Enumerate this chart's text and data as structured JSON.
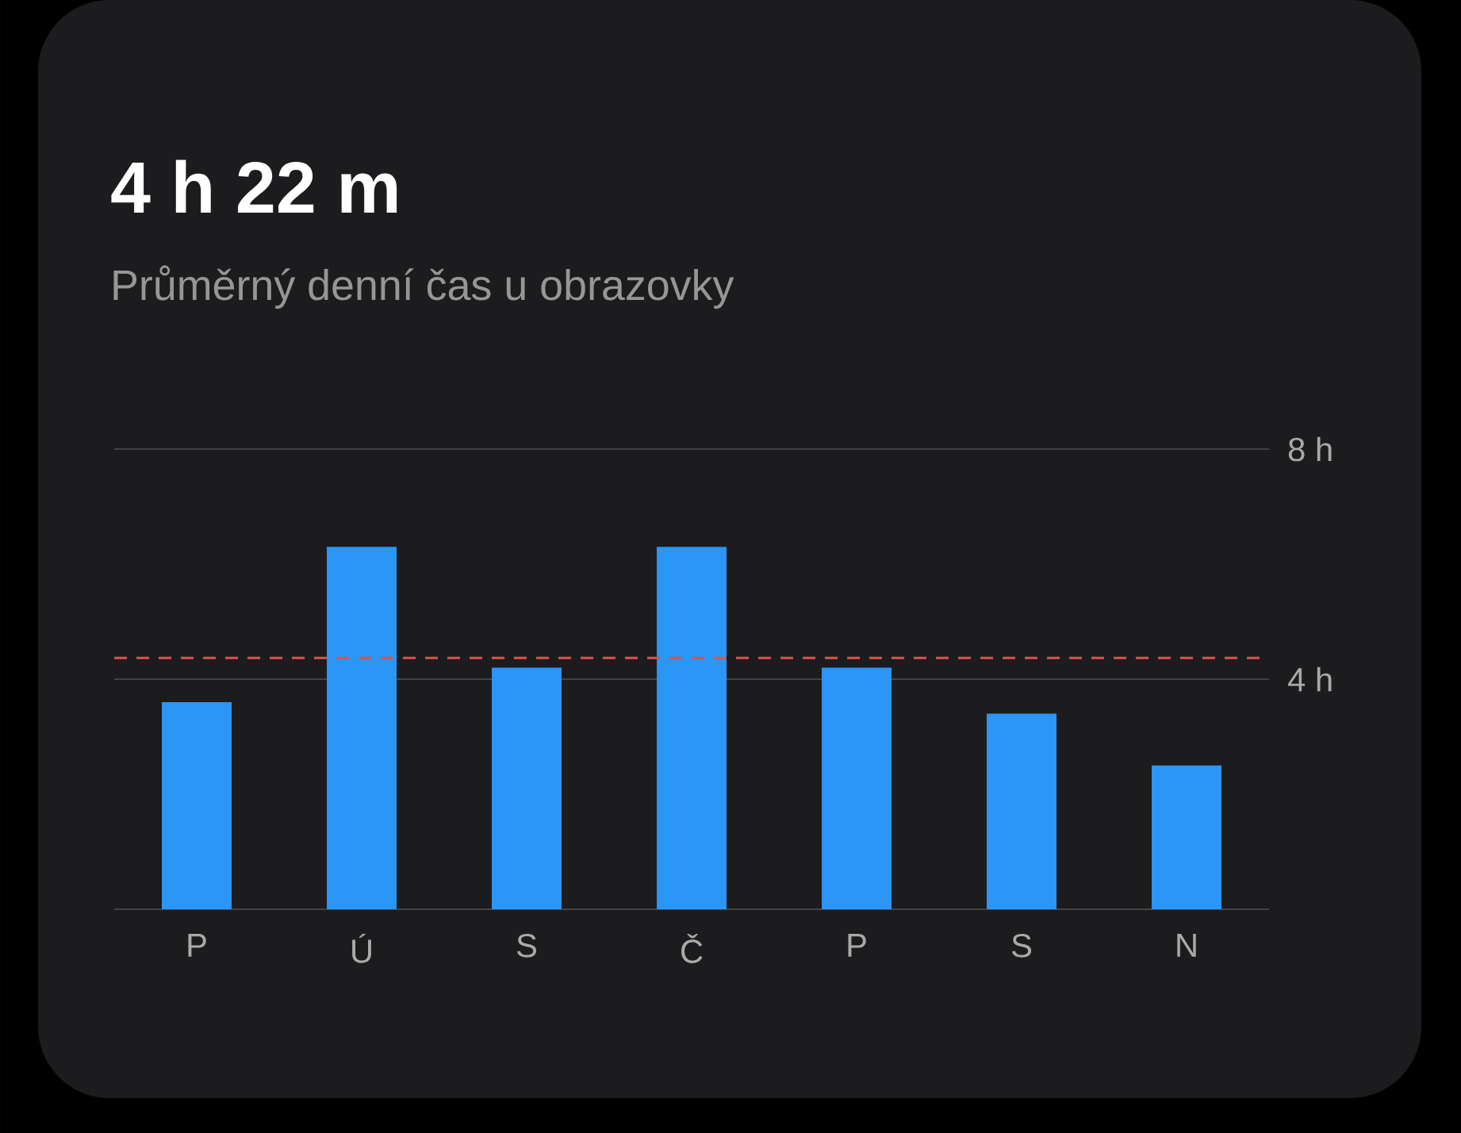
{
  "chart_data": {
    "type": "bar",
    "title": "4 h 22 m",
    "subtitle": "Průměrný denní čas u obrazovky",
    "categories": [
      "P",
      "Ú",
      "S",
      "Č",
      "P",
      "S",
      "N"
    ],
    "values": [
      3.6,
      6.3,
      4.2,
      6.3,
      4.2,
      3.4,
      2.5
    ],
    "color": "#2b96f6",
    "ylim": [
      0,
      8
    ],
    "yticks": [
      {
        "value": 0,
        "label": null
      },
      {
        "value": 4,
        "label": "4 h"
      },
      {
        "value": 8,
        "label": "8 h"
      }
    ],
    "grid": "y",
    "ref_lines": [
      {
        "axis": "y",
        "value": 4.37,
        "color": "#d9534f",
        "line_style": "dashed"
      }
    ]
  }
}
